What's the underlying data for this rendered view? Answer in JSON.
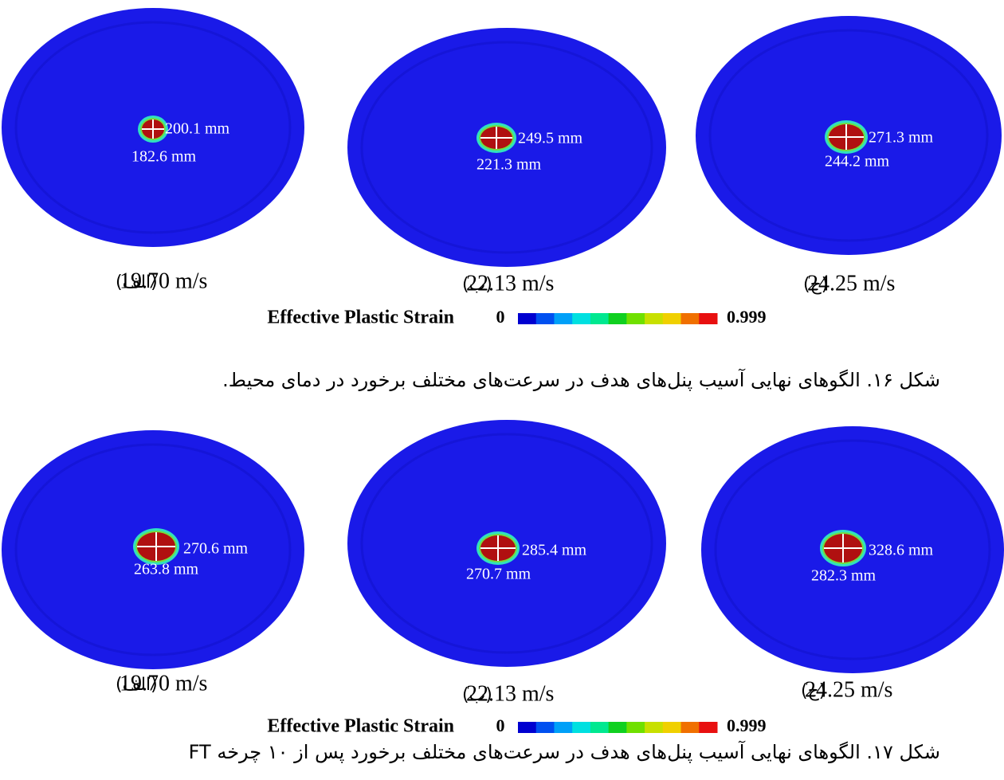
{
  "figures": [
    {
      "panels": [
        {
          "letter": "(الف)",
          "speed": "19.70 m/s",
          "dim_1": "200.1 mm",
          "dim_2": "182.6 mm"
        },
        {
          "letter": "(ب)",
          "speed": "22.13 m/s",
          "dim_1": "249.5 mm",
          "dim_2": "221.3 mm"
        },
        {
          "letter": "(ج)",
          "speed": "24.25 m/s",
          "dim_1": "271.3 mm",
          "dim_2": "244.2 mm"
        }
      ],
      "colorbar": {
        "label": "Effective Plastic Strain",
        "min": "0",
        "max": "0.999"
      },
      "caption": "شکل ۱۶. الگوهای نهایی آسیب پنل‌های هدف در سرعت‌های مختلف برخورد در دمای محیط."
    },
    {
      "panels": [
        {
          "letter": "(الف)",
          "speed": "19.70 m/s",
          "dim_1": "270.6 mm",
          "dim_2": "263.8 mm"
        },
        {
          "letter": "(ب)",
          "speed": "22.13 m/s",
          "dim_1": "285.4 mm",
          "dim_2": "270.7 mm"
        },
        {
          "letter": "(ج)",
          "speed": "24.25 m/s",
          "dim_1": "328.6 mm",
          "dim_2": "282.3 mm"
        }
      ],
      "colorbar": {
        "label": "Effective Plastic Strain",
        "min": "0",
        "max": "0.999"
      },
      "caption": "شکل ۱۷. الگوهای نهایی آسیب پنل‌های هدف در سرعت‌های مختلف برخورد پس از ۱۰ چرخه FT"
    }
  ]
}
